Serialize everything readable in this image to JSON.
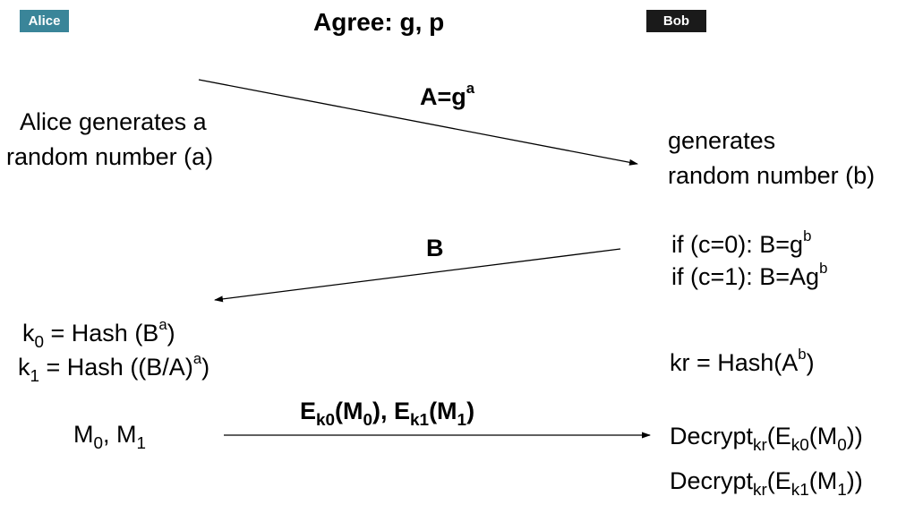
{
  "colors": {
    "alice": "#3a8599",
    "bob": "#1a1a1a",
    "arrow": "#000000"
  },
  "header": {
    "alice_label": "Alice",
    "bob_label": "Bob",
    "agree_text": "Agree: g, p"
  },
  "step1": {
    "alice_line1": "Alice generates a",
    "alice_line2": "random number (a)",
    "bob_line1": "generates",
    "bob_line2": "random number (b)",
    "message": {
      "base": "A=g",
      "exp": "a"
    }
  },
  "step2": {
    "message": "B",
    "bob_if0": {
      "text": "if (c=0): B=g",
      "exp": "b"
    },
    "bob_if1": {
      "text": "if (c=1): B=Ag",
      "exp": "b"
    }
  },
  "step3": {
    "k0": {
      "k": "k",
      "sub": "0",
      "mid": " = Hash (B",
      "exp": "a",
      "end": ")"
    },
    "k1": {
      "k": "k",
      "sub": "1",
      "mid": " = Hash ((B/A)",
      "exp": "a",
      "end": ")"
    },
    "kr": {
      "text": "kr = Hash(A",
      "exp": "b",
      "end": ")"
    }
  },
  "step4": {
    "messages": {
      "m": "M",
      "sub0": "0",
      "sep": ", M",
      "sub1": "1"
    },
    "cipher": {
      "e": "E",
      "k0": "k0",
      "m": "(M",
      "s0": "0",
      "mid": "), ",
      "e2": "E",
      "k1": "k1",
      "m2": "(M",
      "s1": "1",
      "end": ")"
    },
    "decrypt0": {
      "word": "Decrypt",
      "kr": "kr",
      "open": "(E",
      "k": "k0",
      "m": "(M",
      "s": "0",
      "close": "))"
    },
    "decrypt1": {
      "word": "Decrypt",
      "kr": "kr",
      "open": "(E",
      "k": "k1",
      "m": "(M",
      "s": "1",
      "close": "))"
    }
  }
}
